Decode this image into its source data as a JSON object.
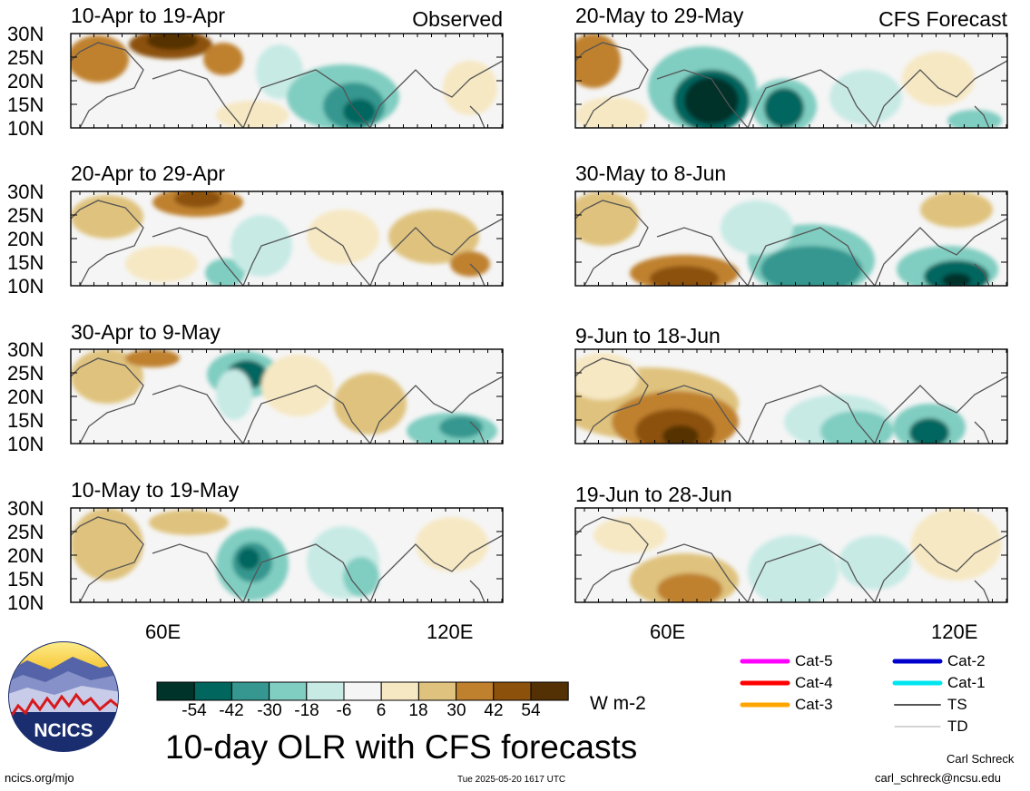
{
  "figure": {
    "title": "10-day OLR with CFS forecasts",
    "observed_label": "Observed",
    "forecast_label": "CFS Forecast",
    "units": "W m-2",
    "credit_name": "Carl Schreck",
    "credit_email": "carl_schreck@ncsu.edu",
    "site": "ncics.org/mjo",
    "timestamp": "Tue 2025-05-20 1617 UTC",
    "logo_text": "NCICS"
  },
  "lat_labels": [
    "30N",
    "25N",
    "20N",
    "15N",
    "10N"
  ],
  "lon_labels": [
    "60E",
    "120E"
  ],
  "panels": [
    {
      "title": "10-Apr to 19-Apr",
      "kind": "observed"
    },
    {
      "title": "20-Apr to 29-Apr",
      "kind": "observed"
    },
    {
      "title": "30-Apr to 9-May",
      "kind": "observed"
    },
    {
      "title": "10-May to 19-May",
      "kind": "observed"
    },
    {
      "title": "20-May to 29-May",
      "kind": "forecast"
    },
    {
      "title": "30-May to 8-Jun",
      "kind": "forecast"
    },
    {
      "title": "9-Jun to 18-Jun",
      "kind": "forecast"
    },
    {
      "title": "19-Jun to 28-Jun",
      "kind": "forecast"
    }
  ],
  "colorbar": {
    "ticks": [
      "-54",
      "-42",
      "-30",
      "-18",
      "-6",
      "6",
      "18",
      "30",
      "42",
      "54"
    ],
    "colors": [
      "#00332a",
      "#00665e",
      "#35978f",
      "#80cdc1",
      "#c7eae5",
      "#f5f5f5",
      "#f6e8c3",
      "#dfc27d",
      "#bf812d",
      "#8c510a",
      "#543005"
    ]
  },
  "track_legend": [
    {
      "label": "Cat-5",
      "color": "#ff00ff"
    },
    {
      "label": "Cat-4",
      "color": "#ff0000"
    },
    {
      "label": "Cat-3",
      "color": "#ffa500"
    },
    {
      "label": "Cat-2",
      "color": "#0000cc"
    },
    {
      "label": "Cat-1",
      "color": "#00e5ee"
    },
    {
      "label": "TS",
      "color": "#555555"
    },
    {
      "label": "TD",
      "color": "#aaaaaa"
    }
  ]
}
